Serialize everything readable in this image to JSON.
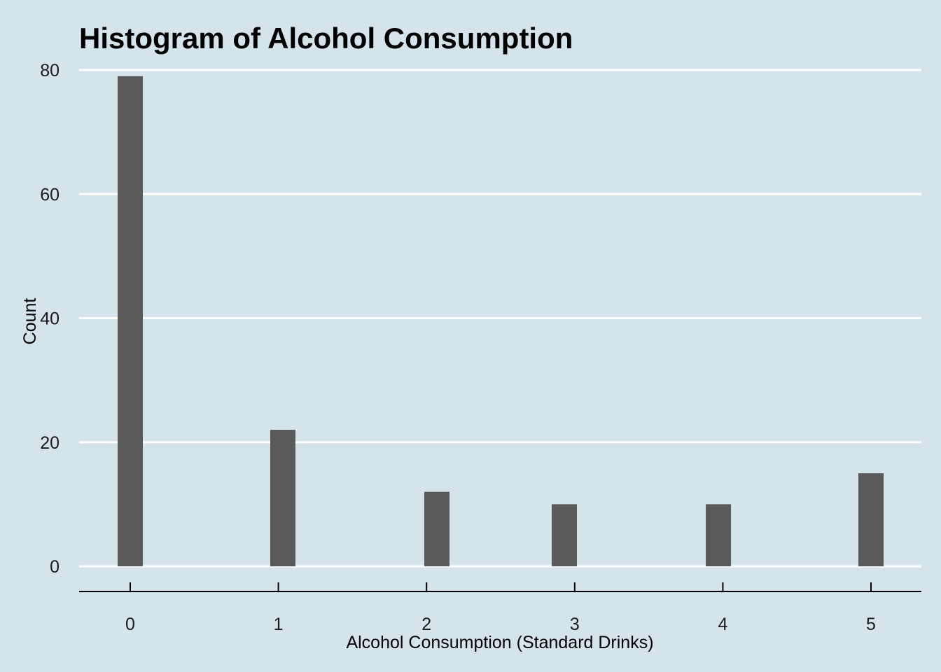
{
  "chart_data": {
    "type": "bar",
    "title": "Histogram of Alcohol Consumption",
    "xlabel": "Alcohol Consumption (Standard Drinks)",
    "ylabel": "Count",
    "x": [
      0,
      1,
      2,
      3,
      4,
      5
    ],
    "x_ticks": [
      "0",
      "1",
      "2",
      "3",
      "4",
      "5"
    ],
    "y_ticks": [
      "0",
      "20",
      "40",
      "60",
      "80"
    ],
    "bins": [
      {
        "x": 0.0,
        "count": 79
      },
      {
        "x": 1.03,
        "count": 22
      },
      {
        "x": 2.07,
        "count": 12
      },
      {
        "x": 2.93,
        "count": 10
      },
      {
        "x": 3.97,
        "count": 10
      },
      {
        "x": 5.0,
        "count": 15
      }
    ],
    "xlim": [
      -0.34,
      5.34
    ],
    "ylim": [
      -4,
      80
    ],
    "grid": "horizontal major",
    "legend": "none",
    "colors": {
      "background": "#d5e4eb",
      "bar": "#595959",
      "grid": "#ffffff",
      "axis": "#000000"
    }
  }
}
